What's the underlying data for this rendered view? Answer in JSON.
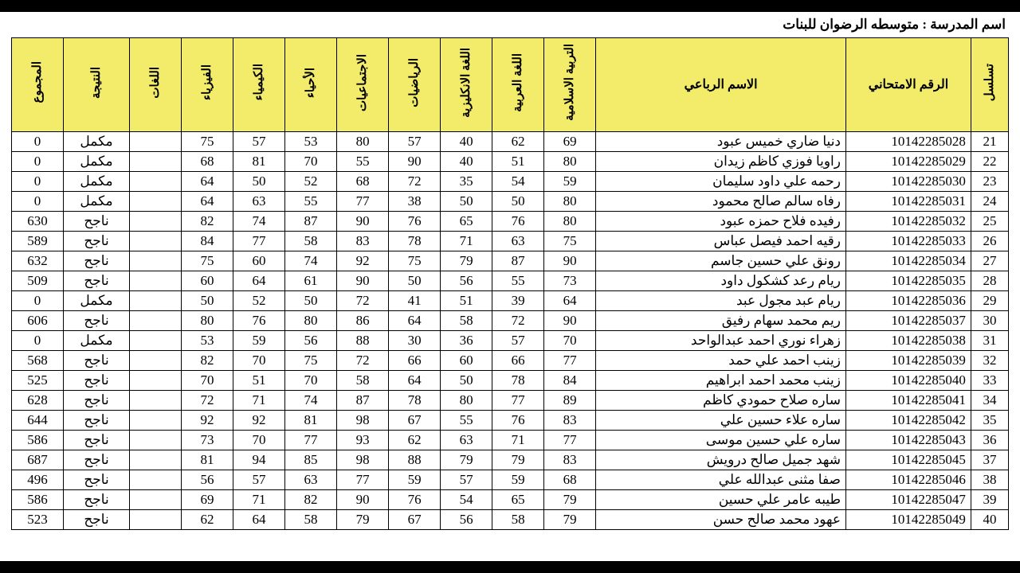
{
  "school_title": "اسم المدرسة : متوسطه الرضوان للبنات",
  "colors": {
    "header_bg": "#f2ec6a",
    "page_bg": "#ffffff",
    "border": "#000000",
    "outer_bg": "#000000"
  },
  "columns": [
    {
      "key": "seq",
      "label": "تسلسل",
      "vertical": true,
      "class": "c-seq"
    },
    {
      "key": "exam_no",
      "label": "الرقم الامتحاني",
      "vertical": false,
      "class": "c-exam"
    },
    {
      "key": "name",
      "label": "الاسم الرباعي",
      "vertical": false,
      "class": "c-name"
    },
    {
      "key": "islamic",
      "label": "التربية الاسلامية",
      "vertical": true,
      "class": "c-sub"
    },
    {
      "key": "arabic",
      "label": "اللغة العربية",
      "vertical": true,
      "class": "c-sub"
    },
    {
      "key": "english",
      "label": "اللغة الانكليزية",
      "vertical": true,
      "class": "c-sub"
    },
    {
      "key": "math",
      "label": "الرياضيات",
      "vertical": true,
      "class": "c-sub"
    },
    {
      "key": "social",
      "label": "الاجتماعيات",
      "vertical": true,
      "class": "c-sub"
    },
    {
      "key": "biology",
      "label": "الأحياء",
      "vertical": true,
      "class": "c-sub"
    },
    {
      "key": "chemistry",
      "label": "الكيمياء",
      "vertical": true,
      "class": "c-sub"
    },
    {
      "key": "physics",
      "label": "الفيزياء",
      "vertical": true,
      "class": "c-sub"
    },
    {
      "key": "languages",
      "label": "اللغات",
      "vertical": true,
      "class": "c-sub"
    },
    {
      "key": "result",
      "label": "النتيجة",
      "vertical": true,
      "class": "c-res"
    },
    {
      "key": "total",
      "label": "المجموع",
      "vertical": true,
      "class": "c-tot"
    }
  ],
  "rows": [
    {
      "seq": "21",
      "exam_no": "10142285028",
      "name": "دنيا ضاري خميس عبود",
      "islamic": "69",
      "arabic": "62",
      "english": "40",
      "math": "57",
      "social": "80",
      "biology": "53",
      "chemistry": "57",
      "physics": "75",
      "languages": "",
      "result": "مكمل",
      "total": "0"
    },
    {
      "seq": "22",
      "exam_no": "10142285029",
      "name": "راويا فوزي كاظم زيدان",
      "islamic": "80",
      "arabic": "51",
      "english": "40",
      "math": "90",
      "social": "55",
      "biology": "70",
      "chemistry": "81",
      "physics": "68",
      "languages": "",
      "result": "مكمل",
      "total": "0"
    },
    {
      "seq": "23",
      "exam_no": "10142285030",
      "name": "رحمه علي داود سليمان",
      "islamic": "59",
      "arabic": "54",
      "english": "35",
      "math": "72",
      "social": "68",
      "biology": "52",
      "chemistry": "50",
      "physics": "64",
      "languages": "",
      "result": "مكمل",
      "total": "0"
    },
    {
      "seq": "24",
      "exam_no": "10142285031",
      "name": "رفاه سالم صالح محمود",
      "islamic": "80",
      "arabic": "50",
      "english": "50",
      "math": "38",
      "social": "77",
      "biology": "55",
      "chemistry": "63",
      "physics": "64",
      "languages": "",
      "result": "مكمل",
      "total": "0"
    },
    {
      "seq": "25",
      "exam_no": "10142285032",
      "name": "رفيده فلاح حمزه عبود",
      "islamic": "80",
      "arabic": "76",
      "english": "65",
      "math": "76",
      "social": "90",
      "biology": "87",
      "chemistry": "74",
      "physics": "82",
      "languages": "",
      "result": "ناجح",
      "total": "630"
    },
    {
      "seq": "26",
      "exam_no": "10142285033",
      "name": "رقيه احمد فيصل عباس",
      "islamic": "75",
      "arabic": "63",
      "english": "71",
      "math": "78",
      "social": "83",
      "biology": "58",
      "chemistry": "77",
      "physics": "84",
      "languages": "",
      "result": "ناجح",
      "total": "589"
    },
    {
      "seq": "27",
      "exam_no": "10142285034",
      "name": "رونق علي حسين جاسم",
      "islamic": "90",
      "arabic": "87",
      "english": "79",
      "math": "75",
      "social": "92",
      "biology": "74",
      "chemistry": "60",
      "physics": "75",
      "languages": "",
      "result": "ناجح",
      "total": "632"
    },
    {
      "seq": "28",
      "exam_no": "10142285035",
      "name": "ريام رعد كشكول داود",
      "islamic": "73",
      "arabic": "55",
      "english": "56",
      "math": "50",
      "social": "90",
      "biology": "61",
      "chemistry": "64",
      "physics": "60",
      "languages": "",
      "result": "ناجح",
      "total": "509"
    },
    {
      "seq": "29",
      "exam_no": "10142285036",
      "name": "ريام عبد مجول عبد",
      "islamic": "64",
      "arabic": "39",
      "english": "51",
      "math": "41",
      "social": "72",
      "biology": "50",
      "chemistry": "52",
      "physics": "50",
      "languages": "",
      "result": "مكمل",
      "total": "0"
    },
    {
      "seq": "30",
      "exam_no": "10142285037",
      "name": "ريم محمد سهام رفيق",
      "islamic": "90",
      "arabic": "72",
      "english": "58",
      "math": "64",
      "social": "86",
      "biology": "80",
      "chemistry": "76",
      "physics": "80",
      "languages": "",
      "result": "ناجح",
      "total": "606"
    },
    {
      "seq": "31",
      "exam_no": "10142285038",
      "name": "زهراء نوري احمد عبدالواحد",
      "islamic": "70",
      "arabic": "57",
      "english": "36",
      "math": "30",
      "social": "88",
      "biology": "56",
      "chemistry": "59",
      "physics": "53",
      "languages": "",
      "result": "مكمل",
      "total": "0"
    },
    {
      "seq": "32",
      "exam_no": "10142285039",
      "name": "زينب احمد علي حمد",
      "islamic": "77",
      "arabic": "66",
      "english": "60",
      "math": "66",
      "social": "72",
      "biology": "75",
      "chemistry": "70",
      "physics": "82",
      "languages": "",
      "result": "ناجح",
      "total": "568"
    },
    {
      "seq": "33",
      "exam_no": "10142285040",
      "name": "زينب محمد احمد ابراهيم",
      "islamic": "84",
      "arabic": "78",
      "english": "50",
      "math": "64",
      "social": "58",
      "biology": "70",
      "chemistry": "51",
      "physics": "70",
      "languages": "",
      "result": "ناجح",
      "total": "525"
    },
    {
      "seq": "34",
      "exam_no": "10142285041",
      "name": "ساره صلاح حمودي كاظم",
      "islamic": "89",
      "arabic": "77",
      "english": "80",
      "math": "78",
      "social": "87",
      "biology": "74",
      "chemistry": "71",
      "physics": "72",
      "languages": "",
      "result": "ناجح",
      "total": "628"
    },
    {
      "seq": "35",
      "exam_no": "10142285042",
      "name": "ساره علاء حسين علي",
      "islamic": "83",
      "arabic": "76",
      "english": "55",
      "math": "67",
      "social": "98",
      "biology": "81",
      "chemistry": "92",
      "physics": "92",
      "languages": "",
      "result": "ناجح",
      "total": "644"
    },
    {
      "seq": "36",
      "exam_no": "10142285043",
      "name": "ساره علي حسين موسى",
      "islamic": "77",
      "arabic": "71",
      "english": "63",
      "math": "62",
      "social": "93",
      "biology": "77",
      "chemistry": "70",
      "physics": "73",
      "languages": "",
      "result": "ناجح",
      "total": "586"
    },
    {
      "seq": "37",
      "exam_no": "10142285045",
      "name": "شهد جميل صالح درويش",
      "islamic": "83",
      "arabic": "79",
      "english": "79",
      "math": "88",
      "social": "98",
      "biology": "85",
      "chemistry": "94",
      "physics": "81",
      "languages": "",
      "result": "ناجح",
      "total": "687"
    },
    {
      "seq": "38",
      "exam_no": "10142285046",
      "name": "صفا مثنى عبدالله علي",
      "islamic": "68",
      "arabic": "59",
      "english": "57",
      "math": "59",
      "social": "77",
      "biology": "63",
      "chemistry": "57",
      "physics": "56",
      "languages": "",
      "result": "ناجح",
      "total": "496"
    },
    {
      "seq": "39",
      "exam_no": "10142285047",
      "name": "طيبه عامر علي حسين",
      "islamic": "79",
      "arabic": "65",
      "english": "54",
      "math": "76",
      "social": "90",
      "biology": "82",
      "chemistry": "71",
      "physics": "69",
      "languages": "",
      "result": "ناجح",
      "total": "586"
    },
    {
      "seq": "40",
      "exam_no": "10142285049",
      "name": "عهود محمد صالح حسن",
      "islamic": "79",
      "arabic": "58",
      "english": "56",
      "math": "67",
      "social": "79",
      "biology": "58",
      "chemistry": "64",
      "physics": "62",
      "languages": "",
      "result": "ناجح",
      "total": "523"
    }
  ]
}
